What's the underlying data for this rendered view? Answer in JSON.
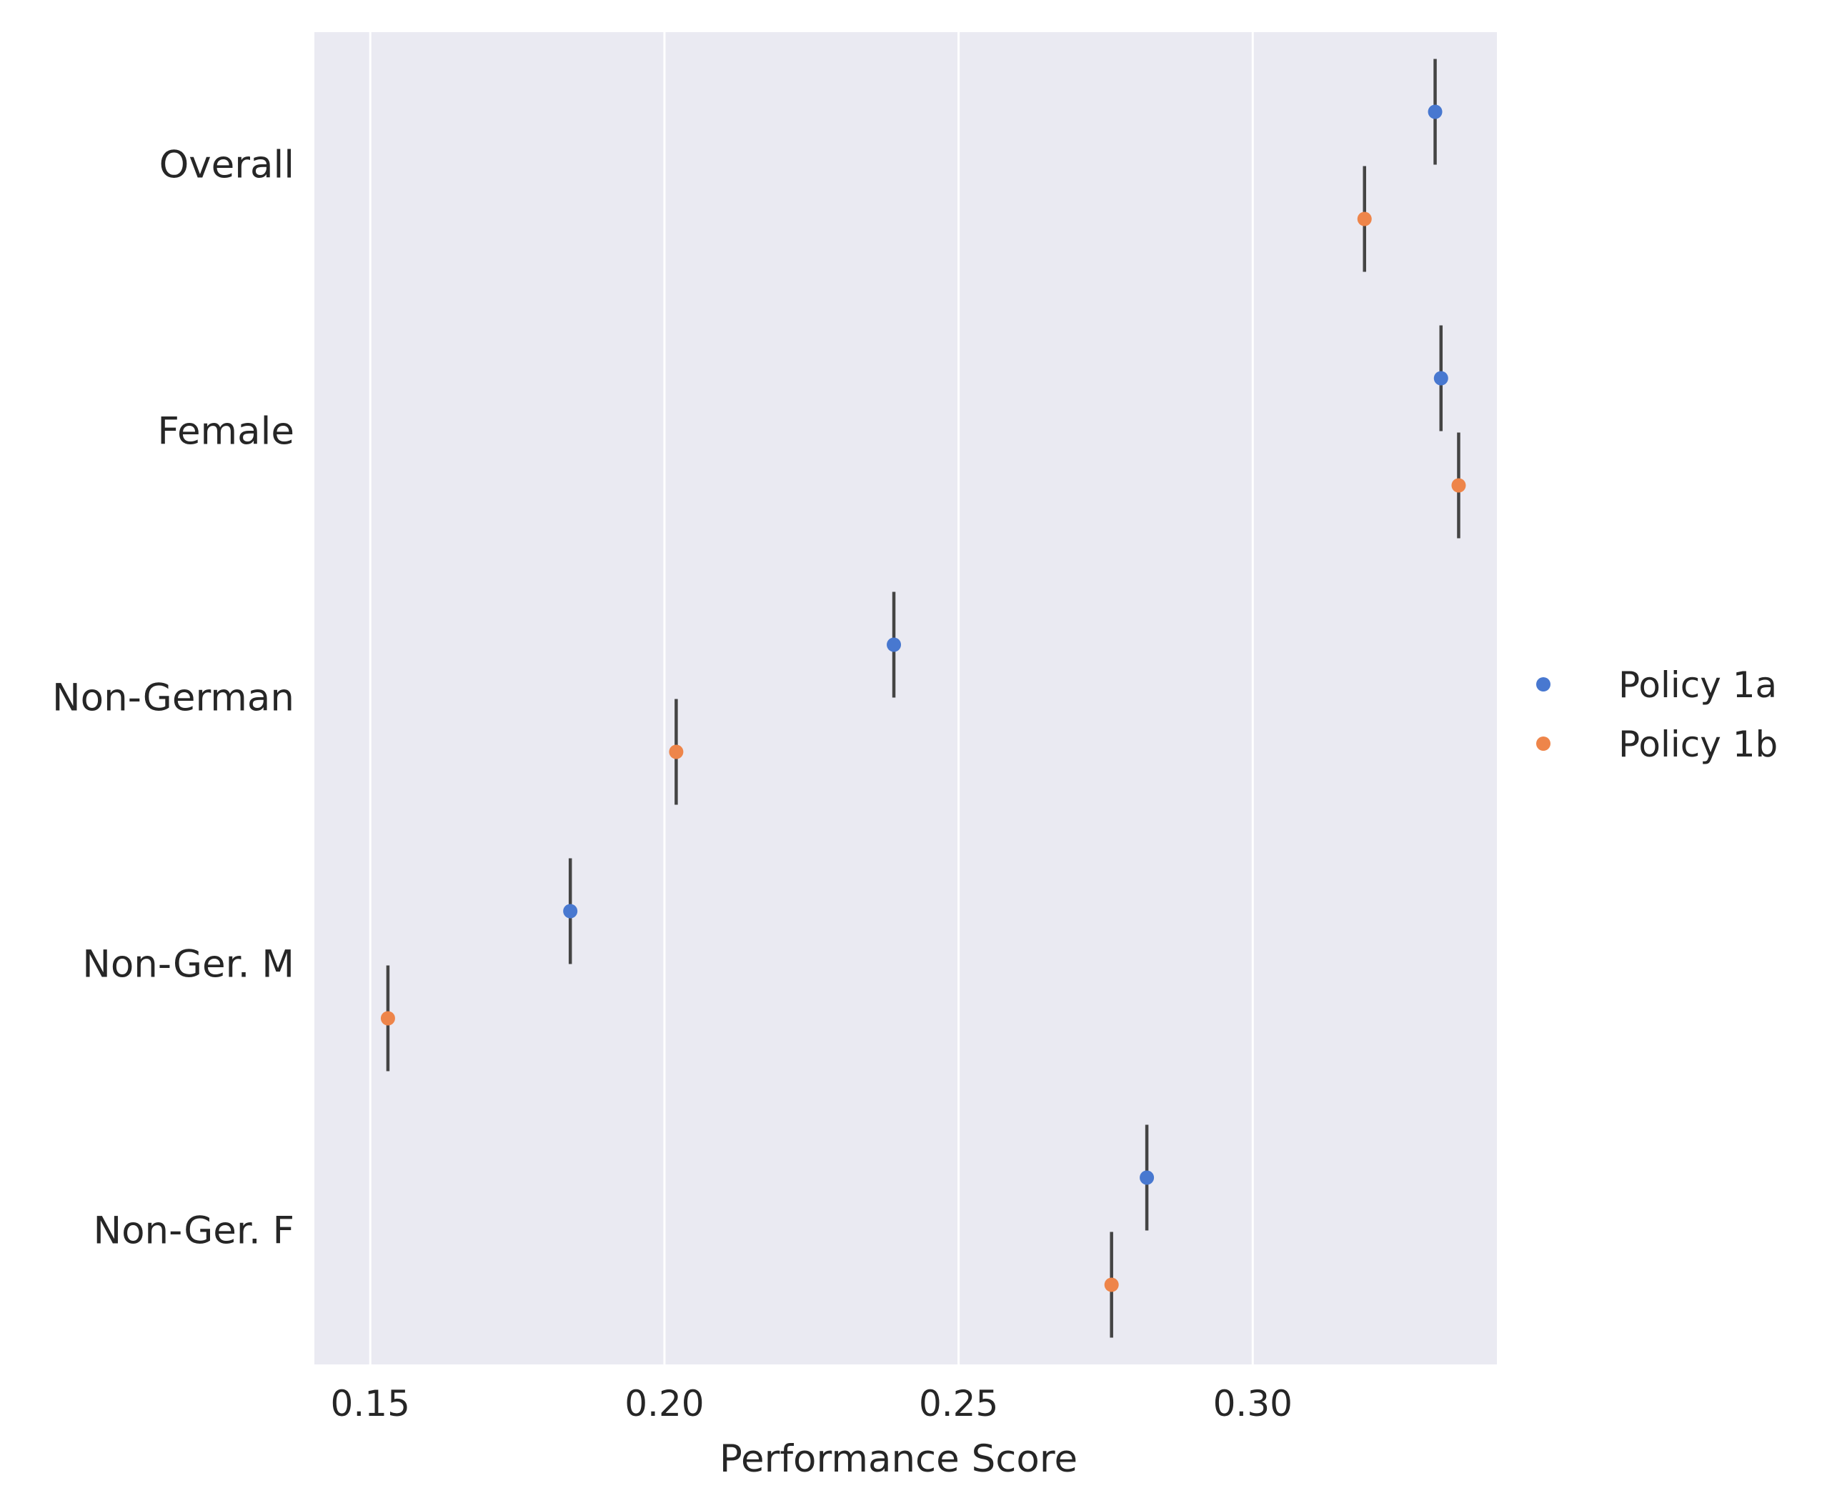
{
  "chart_data": {
    "type": "scatter",
    "orientation": "horizontal",
    "title": "",
    "xlabel": "Performance Score",
    "ylabel": "",
    "xlim": [
      0.1405,
      0.3415
    ],
    "xticks": [
      0.15,
      0.2,
      0.25,
      0.3
    ],
    "xtick_labels": [
      "0.15",
      "0.20",
      "0.25",
      "0.30"
    ],
    "categories": [
      "Overall",
      "Female",
      "Non-German",
      "Non-Ger. M",
      "Non-Ger. F"
    ],
    "grid": "vertical",
    "legend_position": "right",
    "series": [
      {
        "name": "Policy 1a",
        "color": "#4878d0",
        "values": [
          0.331,
          0.332,
          0.239,
          0.184,
          0.282
        ],
        "error_low": [
          0.331,
          0.332,
          0.239,
          0.184,
          0.282
        ],
        "error_high": [
          0.331,
          0.332,
          0.239,
          0.184,
          0.282
        ]
      },
      {
        "name": "Policy 1b",
        "color": "#ee854a",
        "values": [
          0.319,
          0.335,
          0.202,
          0.153,
          0.276
        ],
        "error_low": [
          0.319,
          0.335,
          0.202,
          0.153,
          0.276
        ],
        "error_high": [
          0.319,
          0.335,
          0.202,
          0.153,
          0.276
        ]
      }
    ],
    "colors": {
      "plot_background": "#eaeaf2",
      "grid_line": "#ffffff",
      "error_bar": "#444444"
    }
  }
}
